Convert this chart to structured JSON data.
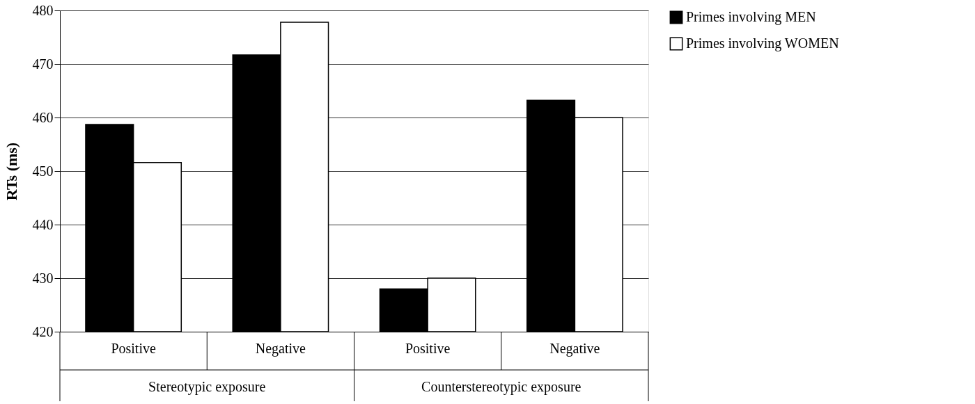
{
  "chart_data": {
    "type": "bar",
    "ylabel": "RTs (ms)",
    "categories": [
      "Positive",
      "Negative",
      "Positive",
      "Negative"
    ],
    "series": [
      {
        "name": "Primes involving MEN",
        "color": "#000000",
        "values": [
          458.7,
          471.7,
          428.0,
          463.2
        ]
      },
      {
        "name": "Primes involving WOMEN",
        "color": "#ffffff",
        "values": [
          451.6,
          477.8,
          430.0,
          460.0
        ]
      }
    ],
    "annotations": [
      "Stereotypic exposure",
      "Counterstereotypic exposure"
    ],
    "ylim": [
      420,
      480
    ],
    "yticks": [
      420,
      430,
      440,
      450,
      460,
      470,
      480
    ],
    "grid": "y",
    "legend": "right"
  }
}
